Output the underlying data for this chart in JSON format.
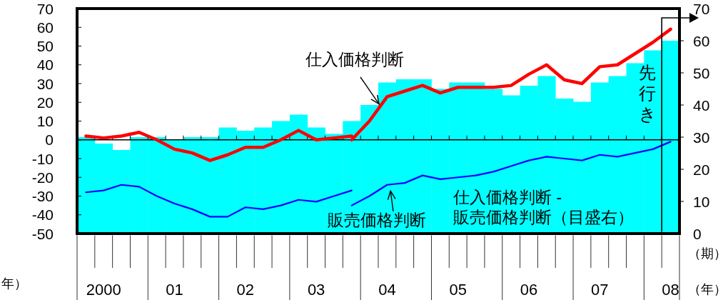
{
  "chart_data": {
    "type": "bar",
    "categories": [
      null,
      "2000",
      null,
      null,
      null,
      "01",
      null,
      null,
      null,
      "02",
      null,
      null,
      null,
      "03",
      null,
      null,
      null,
      "04",
      null,
      null,
      null,
      "05",
      null,
      null,
      null,
      "06",
      null,
      null,
      null,
      "07",
      null,
      null,
      null,
      "08"
    ],
    "ylim": [
      -50,
      70
    ],
    "yticks": [
      -50,
      -40,
      -30,
      -20,
      -10,
      0,
      10,
      20,
      30,
      40,
      50,
      60,
      70
    ],
    "y2lim": [
      0,
      70
    ],
    "y2ticks": [
      0,
      10,
      20,
      30,
      40,
      50,
      60,
      70
    ],
    "series": [
      {
        "name": "仕入価格判断 -\n販売価格判断（目盛右）",
        "axis": "y2",
        "color": "#00ffff",
        "values": [
          30,
          28,
          26,
          30,
          30,
          29,
          30,
          30,
          33,
          32,
          33,
          35,
          37,
          33,
          31,
          35,
          40,
          47,
          48,
          48,
          45,
          47,
          47,
          45,
          43,
          46,
          49,
          42,
          41,
          47,
          49,
          53,
          57,
          60
        ]
      },
      {
        "type": "line",
        "color": "#ff0000",
        "values": [
          2,
          1,
          2,
          4,
          0,
          -5,
          -7,
          -11,
          -8,
          -4,
          -4,
          0,
          5,
          0,
          1,
          2,
          null,
          null,
          null,
          null,
          null,
          null,
          null,
          null,
          null,
          null,
          null,
          null,
          null,
          null,
          null,
          null,
          null,
          null
        ]
      },
      {
        "type": "line",
        "color": "#ff0000",
        "values": [
          null,
          null,
          null,
          null,
          null,
          null,
          null,
          null,
          null,
          null,
          null,
          null,
          null,
          null,
          null,
          0,
          10,
          23,
          26,
          29,
          25,
          28,
          28,
          28,
          29,
          35,
          40,
          32,
          30,
          39,
          40,
          46,
          52,
          59
        ]
      },
      {
        "type": "line",
        "color": "#0000ff",
        "values": [
          -28,
          -27,
          -24,
          -25,
          -30,
          -34,
          -37,
          -41,
          -41,
          -36,
          -37,
          -35,
          -32,
          -33,
          -30,
          -27,
          null,
          null,
          null,
          null,
          null,
          null,
          null,
          null,
          null,
          null,
          null,
          null,
          null,
          null,
          null,
          null,
          null,
          null
        ]
      },
      {
        "name": "販売価格判断",
        "type": "line",
        "color": "#0000ff",
        "values": [
          null,
          null,
          null,
          null,
          null,
          null,
          null,
          null,
          null,
          null,
          null,
          null,
          null,
          null,
          null,
          -35,
          -30,
          -24,
          -23,
          -19,
          -21,
          -20,
          -19,
          -17,
          -14,
          -11,
          -9,
          -10,
          -11,
          -8,
          -9,
          -7,
          -5,
          -1
        ]
      }
    ],
    "annotations": [
      "仕入価格判断",
      "先行き",
      "（期）",
      "（年）",
      "年）"
    ]
  }
}
